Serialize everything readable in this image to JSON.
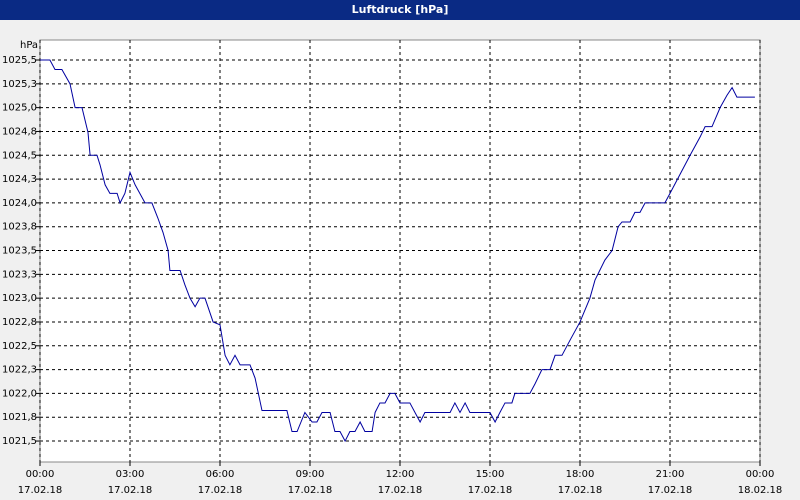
{
  "chart_data": {
    "type": "line",
    "title": "Luftdruck [hPa]",
    "y_label": "hPa",
    "color": "#0000a0",
    "grid": true,
    "x": [
      0,
      0.33,
      0.5,
      0.73,
      1.0,
      1.17,
      1.4,
      1.6,
      1.67,
      1.9,
      2.0,
      2.17,
      2.33,
      2.57,
      2.67,
      2.83,
      3.0,
      3.17,
      3.5,
      3.73,
      3.93,
      4.1,
      4.27,
      4.33,
      4.67,
      4.83,
      5.0,
      5.17,
      5.33,
      5.5,
      5.77,
      6.0,
      6.17,
      6.33,
      6.5,
      6.67,
      7.0,
      7.17,
      7.4,
      8.23,
      8.4,
      8.57,
      8.83,
      9.07,
      9.23,
      9.4,
      9.67,
      9.83,
      10.0,
      10.17,
      10.33,
      10.5,
      10.67,
      10.83,
      11.07,
      11.17,
      11.33,
      11.5,
      11.67,
      11.83,
      12.0,
      12.33,
      12.5,
      12.67,
      12.83,
      13.67,
      13.83,
      14.0,
      14.17,
      14.33,
      15.0,
      15.17,
      15.33,
      15.5,
      15.73,
      15.83,
      16.33,
      16.5,
      16.73,
      17.0,
      17.17,
      17.4,
      17.67,
      18.0,
      18.33,
      18.5,
      18.83,
      19.07,
      19.27,
      19.4,
      19.67,
      19.83,
      20.0,
      20.17,
      20.83,
      21.0,
      21.67,
      22.0,
      22.17,
      22.4,
      22.67,
      22.9,
      23.07,
      23.23,
      23.83
    ],
    "values": [
      1025.5,
      1025.5,
      1025.4,
      1025.4,
      1025.25,
      1025.0,
      1025.0,
      1024.74,
      1024.5,
      1024.5,
      1024.4,
      1024.19,
      1024.1,
      1024.1,
      1024.0,
      1024.1,
      1024.32,
      1024.19,
      1024.0,
      1024.0,
      1023.84,
      1023.69,
      1023.5,
      1023.29,
      1023.29,
      1023.14,
      1023.0,
      1022.91,
      1023.0,
      1023.0,
      1022.75,
      1022.72,
      1022.4,
      1022.3,
      1022.4,
      1022.3,
      1022.3,
      1022.16,
      1021.82,
      1021.82,
      1021.6,
      1021.6,
      1021.8,
      1021.7,
      1021.7,
      1021.8,
      1021.8,
      1021.6,
      1021.6,
      1021.5,
      1021.6,
      1021.6,
      1021.7,
      1021.6,
      1021.6,
      1021.8,
      1021.9,
      1021.9,
      1022.0,
      1022.0,
      1021.9,
      1021.9,
      1021.8,
      1021.7,
      1021.8,
      1021.8,
      1021.9,
      1021.8,
      1021.9,
      1021.8,
      1021.8,
      1021.7,
      1021.8,
      1021.9,
      1021.9,
      1022.0,
      1022.0,
      1022.1,
      1022.25,
      1022.25,
      1022.4,
      1022.4,
      1022.56,
      1022.75,
      1023.0,
      1023.19,
      1023.4,
      1023.5,
      1023.75,
      1023.8,
      1023.8,
      1023.9,
      1023.9,
      1024.0,
      1024.0,
      1024.1,
      1024.5,
      1024.69,
      1024.8,
      1024.8,
      1025.0,
      1025.13,
      1025.21,
      1025.11,
      1025.11
    ],
    "xlim": [
      0,
      24
    ],
    "xticks": [
      {
        "value": 0,
        "label": "00:00",
        "date": "17.02.18"
      },
      {
        "value": 3,
        "label": "03:00",
        "date": "17.02.18"
      },
      {
        "value": 6,
        "label": "06:00",
        "date": "17.02.18"
      },
      {
        "value": 9,
        "label": "09:00",
        "date": "17.02.18"
      },
      {
        "value": 12,
        "label": "12:00",
        "date": "17.02.18"
      },
      {
        "value": 15,
        "label": "15:00",
        "date": "17.02.18"
      },
      {
        "value": 18,
        "label": "18:00",
        "date": "17.02.18"
      },
      {
        "value": 21,
        "label": "21:00",
        "date": "17.02.18"
      },
      {
        "value": 24,
        "label": "00:00",
        "date": "18.02.18"
      }
    ],
    "ylim": [
      1021.28,
      1025.71
    ],
    "yticks": [
      {
        "value": 1021.5,
        "label": "1021,5"
      },
      {
        "value": 1021.75,
        "label": "1021,8"
      },
      {
        "value": 1022.0,
        "label": "1022,0"
      },
      {
        "value": 1022.25,
        "label": "1022,3"
      },
      {
        "value": 1022.5,
        "label": "1022,5"
      },
      {
        "value": 1022.75,
        "label": "1022,8"
      },
      {
        "value": 1023.0,
        "label": "1023,0"
      },
      {
        "value": 1023.25,
        "label": "1023,3"
      },
      {
        "value": 1023.5,
        "label": "1023,5"
      },
      {
        "value": 1023.75,
        "label": "1023,8"
      },
      {
        "value": 1024.0,
        "label": "1024,0"
      },
      {
        "value": 1024.25,
        "label": "1024,3"
      },
      {
        "value": 1024.5,
        "label": "1024,5"
      },
      {
        "value": 1024.75,
        "label": "1024,8"
      },
      {
        "value": 1025.0,
        "label": "1025,0"
      },
      {
        "value": 1025.25,
        "label": "1025,3"
      },
      {
        "value": 1025.5,
        "label": "1025,5"
      }
    ]
  }
}
